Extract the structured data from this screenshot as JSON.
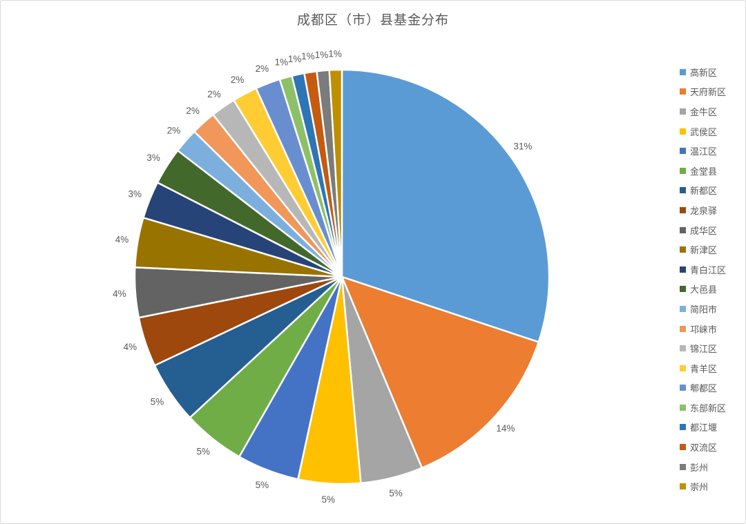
{
  "chart_data": {
    "type": "pie",
    "title": "成都区（市）县基金分布",
    "categories": [
      "高新区",
      "天府新区",
      "金牛区",
      "武侯区",
      "温江区",
      "金堂县",
      "新都区",
      "龙泉驿",
      "成华区",
      "新津区",
      "青白江区",
      "大邑县",
      "简阳市",
      "邛崃市",
      "锦江区",
      "青羊区",
      "郫都区",
      "东部新区",
      "都江堰",
      "双流区",
      "彭州",
      "崇州"
    ],
    "values_percent": [
      31,
      14,
      5,
      5,
      5,
      5,
      5,
      4,
      4,
      4,
      3,
      3,
      2,
      2,
      2,
      2,
      2,
      1,
      1,
      1,
      1,
      1
    ],
    "labels": [
      "31%",
      "14%",
      "5%",
      "5%",
      "5%",
      "5%",
      "5%",
      "4%",
      "4%",
      "4%",
      "3%",
      "3%",
      "2%",
      "2%",
      "2%",
      "2%",
      "2%",
      "1%",
      "1%",
      "1%",
      "1%",
      "1%"
    ],
    "slice_colors": [
      "#5B9BD5",
      "#ED7D31",
      "#A5A5A5",
      "#FFC000",
      "#4472C4",
      "#70AD47",
      "#255E91",
      "#9E480E",
      "#636363",
      "#997300",
      "#264478",
      "#43682B",
      "#7CAFDD",
      "#F1975A",
      "#B7B7B7",
      "#FFCD33",
      "#698ED0",
      "#8CC168",
      "#2E75B6",
      "#C55A11",
      "#7B7B7B",
      "#BF8F00"
    ],
    "start_angle_deg": 0,
    "direction": "clockwise",
    "label_position": "outside-end",
    "legend_position": "right",
    "text_color": "#595959",
    "slice_border_color": "#FFFFFF",
    "frame_border_color": "#D9D9D9"
  }
}
